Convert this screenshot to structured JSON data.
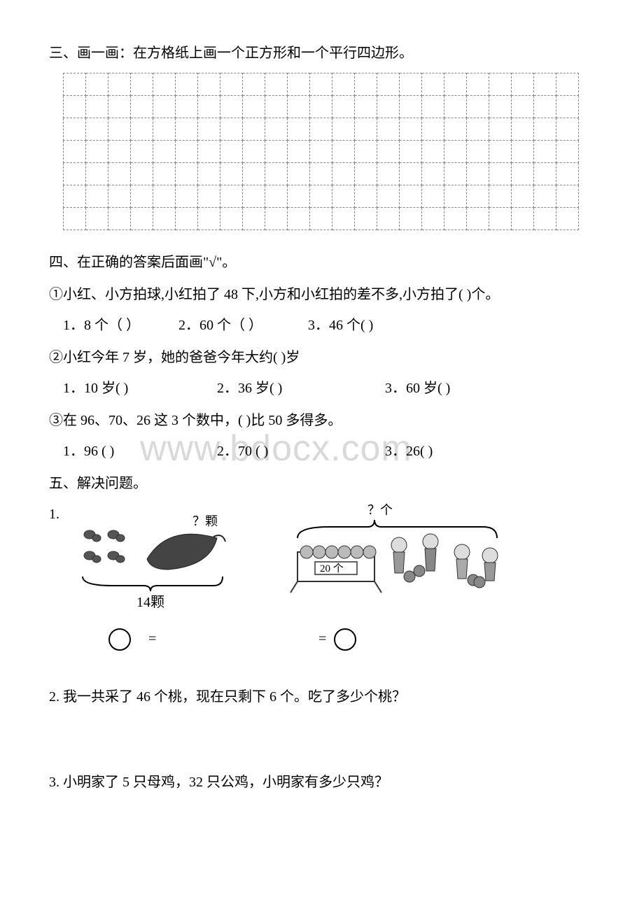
{
  "section3": {
    "title": "三、画一画：在方格纸上画一个正方形和一个平行四边形。",
    "grid": {
      "rows": 7,
      "cols": 23
    }
  },
  "section4": {
    "title": "四、在正确的答案后面画\"√\"。",
    "q1": {
      "text": "①小红、小方拍球,小红拍了 48 下,小方和小红拍的差不多,小方拍了(      )个。",
      "opt1": "1．8 个（    ）",
      "opt2": "2．60 个（    ）",
      "opt3": "3．46 个(        )"
    },
    "q2": {
      "text": "②小红今年 7 岁，她的爸爸今年大约(      )岁",
      "opt1": "1．10 岁(        )",
      "opt2": "2．36 岁(        )",
      "opt3": "3．60 岁(        )"
    },
    "q3": {
      "text": "③在 96、70、26 这 3 个数中，(      )比 50 多得多。",
      "opt1": "1．96 (        )",
      "opt2": "2．70 (        )",
      "opt3": "3．26(        )"
    }
  },
  "section5": {
    "title": "五、解决问题。",
    "p1": {
      "label": "1.",
      "fig1_prompt": "？颗",
      "fig1_total": "14颗",
      "fig1_eq": "=",
      "fig2_prompt": "？个",
      "fig2_box": "20 个",
      "fig2_eq": "="
    },
    "p2": "2. 我一共采了 46 个桃，现在只剩下 6 个。吃了多少个桃？",
    "p3": "3. 小明家了 5 只母鸡，32 只公鸡，小明家有多少只鸡？"
  },
  "watermark": "www.bdocx.com"
}
